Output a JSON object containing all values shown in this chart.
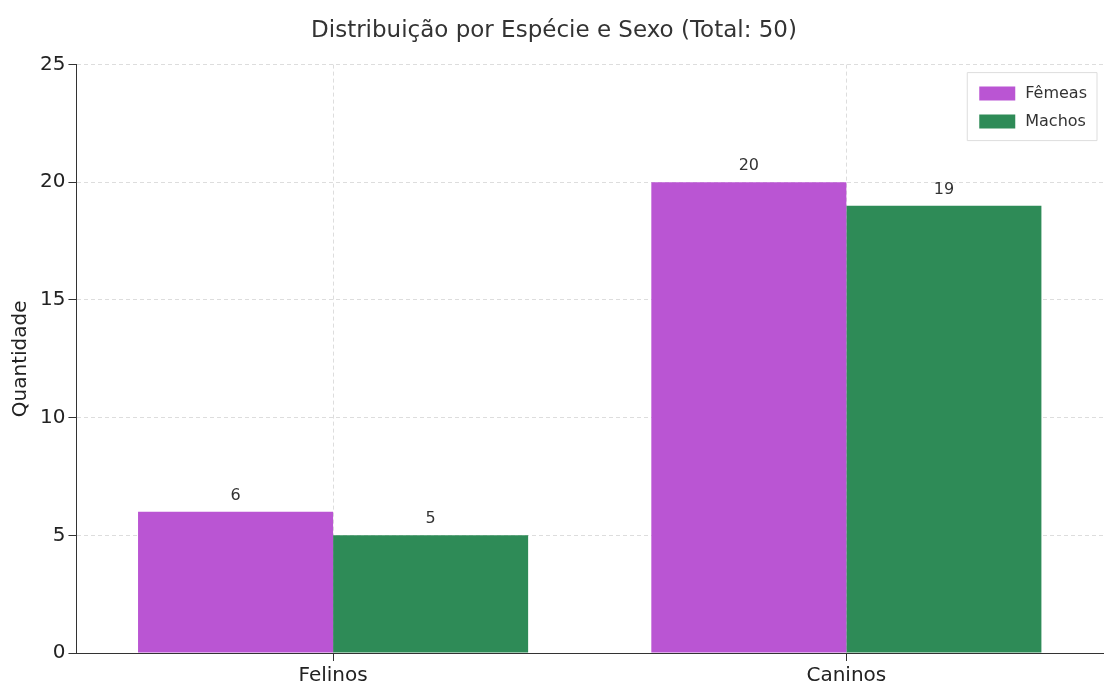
{
  "chart_data": {
    "type": "bar",
    "title": "Distribuição por Espécie e Sexo (Total: 50)",
    "ylabel": "Quantidade",
    "categories": [
      "Felinos",
      "Caninos"
    ],
    "series": [
      {
        "name": "Fêmeas",
        "color": "#ba55d3",
        "values": [
          6,
          20
        ]
      },
      {
        "name": "Machos",
        "color": "#2e8b57",
        "values": [
          5,
          19
        ]
      }
    ],
    "ylim": [
      0,
      25
    ],
    "yticks": [
      0,
      5,
      10,
      15,
      20,
      25
    ],
    "grid": true,
    "legend": "top right",
    "data_labels": true
  }
}
